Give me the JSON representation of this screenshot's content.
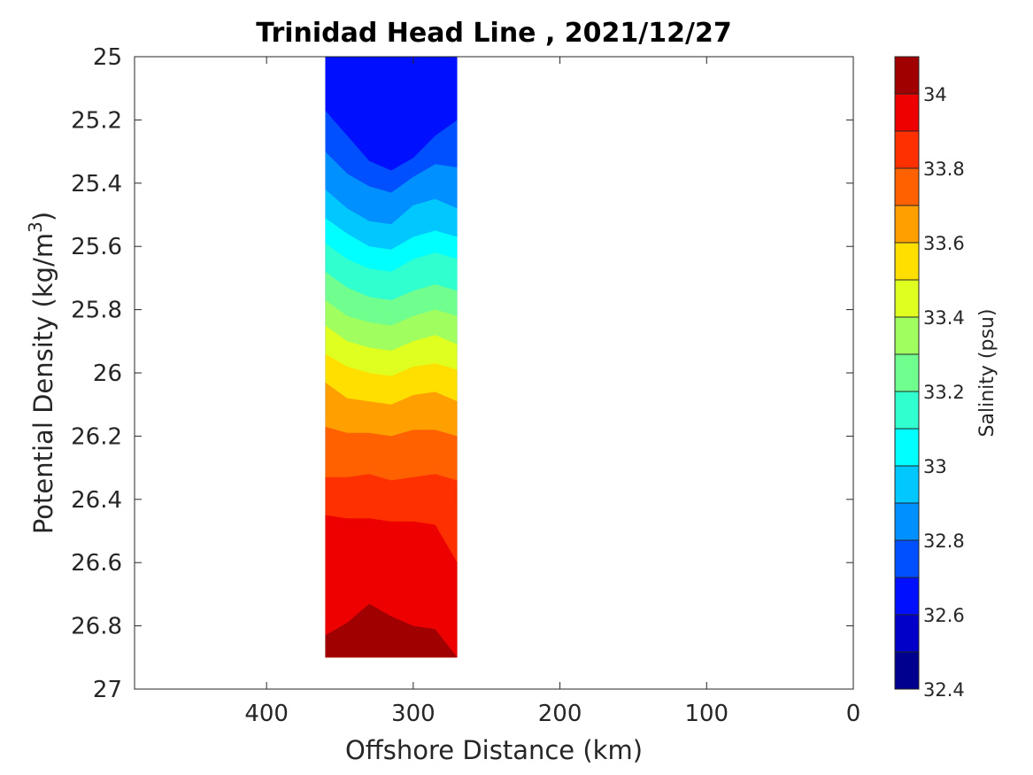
{
  "chart_data": {
    "type": "heatmap",
    "title": "Trinidad Head Line , 2021/12/27",
    "xlabel": "Offshore Distance (km)",
    "ylabel_main": "Potential Density (kg/m",
    "ylabel_sup": "3",
    "ylabel_end": ")",
    "colorbar_label": "Salinity (psu)",
    "x_axis": {
      "min": 0,
      "max": 490,
      "reversed": true,
      "ticks": [
        400,
        300,
        200,
        100,
        0
      ],
      "tick_labels": [
        "400",
        "300",
        "200",
        "100",
        "0"
      ]
    },
    "y_axis": {
      "min": 25,
      "max": 27,
      "reversed": true,
      "ticks": [
        25,
        25.2,
        25.4,
        25.6,
        25.8,
        26,
        26.2,
        26.4,
        26.6,
        26.8,
        27
      ],
      "tick_labels": [
        "25",
        "25.2",
        "25.4",
        "25.6",
        "25.8",
        "26",
        "26.2",
        "26.4",
        "26.6",
        "26.8",
        "27"
      ]
    },
    "data_extent": {
      "x_offshore_km": 360,
      "x_nearshore_km": 270,
      "y_top": 25,
      "y_bottom": 26.9
    },
    "x_samples": [
      360,
      345,
      330,
      315,
      300,
      285,
      270
    ],
    "contour_levels": [
      32.5,
      32.6,
      32.7,
      32.8,
      32.9,
      33.0,
      33.1,
      33.2,
      33.3,
      33.4,
      33.5,
      33.6,
      33.7,
      33.8,
      33.9,
      34.0
    ],
    "contour_depths": [
      [
        25.0,
        25.0,
        25.0,
        25.0,
        25.0,
        25.0,
        25.0
      ],
      [
        25.0,
        25.0,
        25.0,
        25.0,
        25.0,
        25.0,
        25.0
      ],
      [
        25.17,
        25.25,
        25.33,
        25.36,
        25.32,
        25.25,
        25.2
      ],
      [
        25.3,
        25.37,
        25.41,
        25.43,
        25.38,
        25.34,
        25.35
      ],
      [
        25.42,
        25.48,
        25.52,
        25.53,
        25.47,
        25.45,
        25.48
      ],
      [
        25.51,
        25.56,
        25.6,
        25.61,
        25.57,
        25.55,
        25.57
      ],
      [
        25.59,
        25.64,
        25.67,
        25.68,
        25.64,
        25.62,
        25.64
      ],
      [
        25.68,
        25.73,
        25.76,
        25.77,
        25.74,
        25.72,
        25.74
      ],
      [
        25.77,
        25.82,
        25.84,
        25.85,
        25.82,
        25.8,
        25.82
      ],
      [
        25.85,
        25.9,
        25.92,
        25.93,
        25.9,
        25.88,
        25.91
      ],
      [
        25.94,
        25.98,
        26.0,
        26.01,
        25.98,
        25.97,
        25.99
      ],
      [
        26.03,
        26.08,
        26.09,
        26.1,
        26.07,
        26.06,
        26.09
      ],
      [
        26.17,
        26.19,
        26.19,
        26.2,
        26.18,
        26.18,
        26.2
      ],
      [
        26.33,
        26.33,
        26.32,
        26.34,
        26.33,
        26.32,
        26.34
      ],
      [
        26.45,
        26.46,
        26.46,
        26.47,
        26.47,
        26.48,
        26.6
      ],
      [
        26.83,
        26.79,
        26.73,
        26.77,
        26.8,
        26.81,
        26.9
      ]
    ],
    "colorbar": {
      "min": 32.4,
      "max": 34.1,
      "ticks": [
        32.4,
        32.6,
        32.8,
        33,
        33.2,
        33.4,
        33.6,
        33.8,
        34
      ],
      "tick_labels": [
        "32.4",
        "32.6",
        "32.8",
        "33",
        "33.2",
        "33.4",
        "33.6",
        "33.8",
        "34"
      ],
      "colors": [
        "#00008f",
        "#0000c8",
        "#0010ff",
        "#0050ff",
        "#0090ff",
        "#00c8ff",
        "#00ffff",
        "#30ffcf",
        "#70ff8f",
        "#a0ff5f",
        "#dfff20",
        "#ffdf00",
        "#ffa000",
        "#ff6000",
        "#ff3000",
        "#ef0000",
        "#a00000"
      ]
    },
    "grid": false,
    "legend": "colorbar-right"
  }
}
